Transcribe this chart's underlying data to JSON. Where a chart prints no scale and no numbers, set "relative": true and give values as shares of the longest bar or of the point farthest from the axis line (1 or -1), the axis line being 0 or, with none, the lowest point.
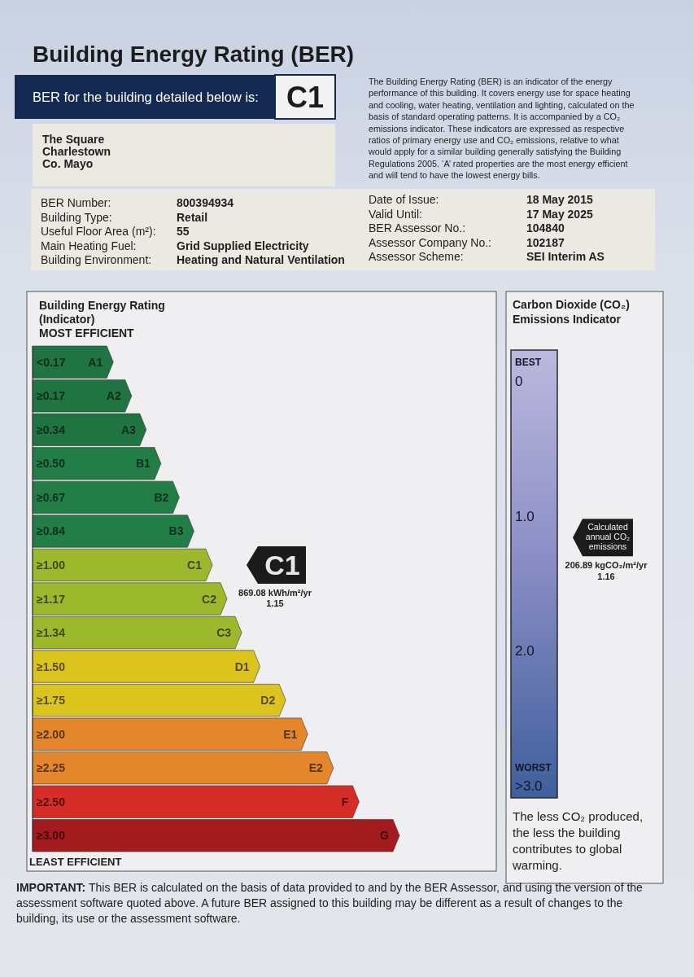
{
  "chart_data": [
    {
      "type": "bar",
      "orientation": "horizontal",
      "relative": true,
      "title": "Building Energy Rating (BER)",
      "subtitle": "Building Energy Rating (Indicator)",
      "categories": [
        "<0.17",
        "≥0.17",
        "≥0.34",
        "≥0.50",
        "≥0.67",
        "≥0.84",
        "≥1.00",
        "≥1.17",
        "≥1.34",
        "≥1.50",
        "≥1.75",
        "≥2.00",
        "≥2.25",
        "≥2.50",
        "≥3.00"
      ],
      "values": [
        0.22,
        0.27,
        0.31,
        0.35,
        0.4,
        0.44,
        0.49,
        0.53,
        0.57,
        0.62,
        0.69,
        0.75,
        0.82,
        0.89,
        1
      ],
      "colors": [
        "#1f7442",
        "#1f7442",
        "#1f7442",
        "#237d47",
        "#237d47",
        "#237d47",
        "#9cb82c",
        "#9cb82c",
        "#9cb82c",
        "#dcc41f",
        "#dcc41f",
        "#e4872c",
        "#e4872c",
        "#d52e28",
        "#a31b1e"
      ],
      "annotations": [
        "BER for the building detailed below is:",
        "C1",
        "The Square",
        "Charlestown",
        "Co. Mayo",
        "The Building Energy Rating (BER) is an indicator of the energy performance of this building. It covers energy use for space heating and cooling, water heating, ventilation and lighting, calculated on the basis of standard operating patterns. It is accompanied by a CO₂ emissions indicator. These indicators are expressed as respective ratios of primary energy use and CO₂ emissions, relative to what would apply for a similar building generally satisfying the Building Regulations 2005. ‘A’ rated properties are the most energy efficient and will tend to have the lowest energy bills.",
        "BER Number:",
        "800394934",
        "Building Type:",
        "Retail",
        "Useful Floor Area (m²):",
        "55",
        "Main Heating Fuel:",
        "Grid Supplied Electricity",
        "Building Environment:",
        "Heating and Natural Ventilation",
        "Date of Issue:",
        "18 May 2015",
        "Valid Until:",
        "17 May 2025",
        "BER Assessor No.:",
        "104840",
        "Assessor Company No.:",
        "102187",
        "Assessor Scheme:",
        "SEI Interim AS",
        "MOST EFFICIENT",
        "LEAST EFFICIENT",
        "IMPORTANT: This BER is calculated on the basis of data provided to and by the BER Assessor, and using the version of the assessment software quoted above. A future BER assigned to this building may be different as a result of changes to the building, its use or the assessment software.",
        "A1",
        "A2",
        "A3",
        "B1",
        "B2",
        "B3",
        "C1",
        "C2",
        "C3",
        "D1",
        "D2",
        "E1",
        "E2",
        "F",
        "G",
        "C1",
        "869.08 kWh/m²/yr",
        "1.15"
      ]
    },
    {
      "type": "other",
      "title": "Carbon Dioxide (CO₂) Emissions Indicator",
      "values": [
        1.16
      ],
      "data_labels": true,
      "annotations": [
        "BEST",
        "0",
        "1.0",
        "2.0",
        "WORST",
        ">3.0",
        "Calculated annual CO₂ emissions",
        "206.89 kgCO₂/m²/yr",
        "The less CO₂ produced, the less the building contributes to global warming."
      ]
    }
  ]
}
